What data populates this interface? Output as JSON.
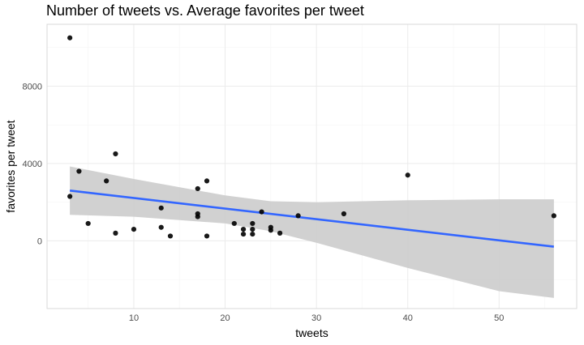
{
  "chart_data": {
    "type": "scatter",
    "title": "Number of tweets vs. Average favorites per tweet",
    "xlabel": "tweets",
    "ylabel": "favorites per tweet",
    "xlim": [
      0.5,
      58.5
    ],
    "ylim": [
      -3500,
      11200
    ],
    "x_ticks": [
      10,
      20,
      30,
      40,
      50
    ],
    "y_ticks": [
      0,
      4000,
      8000
    ],
    "grid": true,
    "legend": "none",
    "points": {
      "x": [
        3,
        3,
        4,
        5,
        7,
        8,
        8,
        10,
        13,
        13,
        14,
        17,
        17,
        17,
        18,
        18,
        21,
        22,
        22,
        23,
        23,
        23,
        24,
        25,
        25,
        26,
        28,
        33,
        40,
        56
      ],
      "y": [
        10500,
        2300,
        3600,
        900,
        3100,
        4500,
        400,
        600,
        700,
        1700,
        250,
        2700,
        1400,
        1250,
        3100,
        250,
        900,
        600,
        350,
        900,
        600,
        350,
        1500,
        700,
        550,
        400,
        1300,
        1400,
        3400,
        1300
      ]
    },
    "trend_line": {
      "method": "linear regression",
      "x": [
        3,
        56
      ],
      "y": [
        2600,
        -300
      ]
    },
    "confidence_band": {
      "x": [
        3,
        10,
        20,
        25,
        30,
        40,
        50,
        56
      ],
      "lower": [
        1350,
        1250,
        900,
        500,
        -100,
        -1400,
        -2600,
        -2950
      ],
      "upper": [
        3850,
        3200,
        2350,
        2050,
        2000,
        2100,
        2150,
        2150
      ]
    },
    "colors": {
      "points": "#000000",
      "trend_line": "#3366ff",
      "confidence_band": "#cccccc",
      "grid_major": "#ebebeb",
      "grid_minor": "#f5f5f5",
      "panel_border": "#d9d9d9",
      "tick_text": "#4d4d4d"
    }
  }
}
